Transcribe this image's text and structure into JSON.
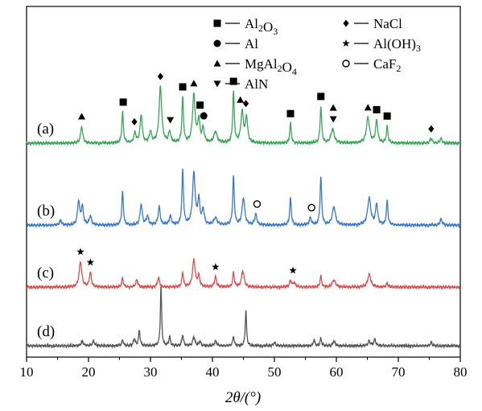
{
  "chart_data": {
    "type": "line",
    "xlabel": "2θ/(°)",
    "xlim": [
      10,
      80
    ],
    "x_ticks": [
      "10",
      "20",
      "30",
      "40",
      "50",
      "60",
      "70",
      "80"
    ],
    "legend": {
      "placement": "top-right",
      "entries": [
        {
          "marker": "square",
          "label": "Al",
          "sub": "2",
          "label2": "O",
          "sub2": "3",
          "label3": ""
        },
        {
          "marker": "circle",
          "label": "Al",
          "sub": "",
          "label2": "",
          "sub2": "",
          "label3": ""
        },
        {
          "marker": "triangle-up",
          "label": "MgAl",
          "sub": "2",
          "label2": "O",
          "sub2": "4",
          "label3": ""
        },
        {
          "marker": "triangle-down",
          "label": "AlN",
          "sub": "",
          "label2": "",
          "sub2": "",
          "label3": ""
        },
        {
          "marker": "diamond",
          "label": "NaCl",
          "sub": "",
          "label2": "",
          "sub2": "",
          "label3": ""
        },
        {
          "marker": "star",
          "label": "Al(OH)",
          "sub": "3",
          "label2": "",
          "sub2": "",
          "label3": ""
        },
        {
          "marker": "open-circle",
          "label": "CaF",
          "sub": "2",
          "label2": "",
          "sub2": "",
          "label3": ""
        }
      ]
    },
    "series": [
      {
        "name": "(a)",
        "color": "#3aa55a",
        "peaks": [
          {
            "x": 18.9,
            "h": 0.3,
            "w": 0.2
          },
          {
            "x": 25.5,
            "h": 0.55,
            "w": 0.15
          },
          {
            "x": 27.5,
            "h": 0.18,
            "w": 0.2
          },
          {
            "x": 28.5,
            "h": 0.5,
            "w": 0.2
          },
          {
            "x": 30.0,
            "h": 0.2,
            "w": 0.2
          },
          {
            "x": 31.6,
            "h": 1.0,
            "w": 0.25
          },
          {
            "x": 33.1,
            "h": 0.2,
            "w": 0.2
          },
          {
            "x": 35.2,
            "h": 0.8,
            "w": 0.15
          },
          {
            "x": 37.0,
            "h": 0.85,
            "w": 0.25
          },
          {
            "x": 37.8,
            "h": 0.4,
            "w": 0.2
          },
          {
            "x": 38.5,
            "h": 0.25,
            "w": 0.2
          },
          {
            "x": 40.5,
            "h": 0.2,
            "w": 0.3
          },
          {
            "x": 43.4,
            "h": 0.9,
            "w": 0.15
          },
          {
            "x": 44.8,
            "h": 0.55,
            "w": 0.25
          },
          {
            "x": 45.5,
            "h": 0.45,
            "w": 0.2
          },
          {
            "x": 52.6,
            "h": 0.35,
            "w": 0.15
          },
          {
            "x": 57.5,
            "h": 0.65,
            "w": 0.15
          },
          {
            "x": 59.4,
            "h": 0.25,
            "w": 0.3
          },
          {
            "x": 65.1,
            "h": 0.45,
            "w": 0.3
          },
          {
            "x": 66.5,
            "h": 0.4,
            "w": 0.2
          },
          {
            "x": 68.2,
            "h": 0.3,
            "w": 0.15
          },
          {
            "x": 75.3,
            "h": 0.08,
            "w": 0.2
          },
          {
            "x": 76.9,
            "h": 0.08,
            "w": 0.2
          }
        ]
      },
      {
        "name": "(b)",
        "color": "#3a78cc",
        "peaks": [
          {
            "x": 15.5,
            "h": 0.08,
            "w": 0.2
          },
          {
            "x": 18.4,
            "h": 0.4,
            "w": 0.2
          },
          {
            "x": 19.0,
            "h": 0.3,
            "w": 0.2
          },
          {
            "x": 20.3,
            "h": 0.15,
            "w": 0.2
          },
          {
            "x": 25.5,
            "h": 0.55,
            "w": 0.15
          },
          {
            "x": 28.5,
            "h": 0.35,
            "w": 0.2
          },
          {
            "x": 29.5,
            "h": 0.15,
            "w": 0.2
          },
          {
            "x": 31.4,
            "h": 0.3,
            "w": 0.2
          },
          {
            "x": 33.2,
            "h": 0.15,
            "w": 0.2
          },
          {
            "x": 35.2,
            "h": 0.9,
            "w": 0.15
          },
          {
            "x": 37.0,
            "h": 0.85,
            "w": 0.25
          },
          {
            "x": 37.8,
            "h": 0.4,
            "w": 0.2
          },
          {
            "x": 38.5,
            "h": 0.25,
            "w": 0.2
          },
          {
            "x": 40.5,
            "h": 0.12,
            "w": 0.3
          },
          {
            "x": 43.4,
            "h": 0.8,
            "w": 0.15
          },
          {
            "x": 45.0,
            "h": 0.45,
            "w": 0.25
          },
          {
            "x": 47.0,
            "h": 0.18,
            "w": 0.2
          },
          {
            "x": 52.6,
            "h": 0.45,
            "w": 0.15
          },
          {
            "x": 55.8,
            "h": 0.12,
            "w": 0.2
          },
          {
            "x": 57.5,
            "h": 0.8,
            "w": 0.15
          },
          {
            "x": 59.6,
            "h": 0.3,
            "w": 0.3
          },
          {
            "x": 65.3,
            "h": 0.45,
            "w": 0.3
          },
          {
            "x": 66.5,
            "h": 0.35,
            "w": 0.2
          },
          {
            "x": 68.2,
            "h": 0.4,
            "w": 0.15
          },
          {
            "x": 76.9,
            "h": 0.1,
            "w": 0.2
          }
        ]
      },
      {
        "name": "(c)",
        "color": "#d94f4f",
        "peaks": [
          {
            "x": 18.7,
            "h": 0.7,
            "w": 0.25
          },
          {
            "x": 20.3,
            "h": 0.4,
            "w": 0.2
          },
          {
            "x": 25.5,
            "h": 0.25,
            "w": 0.15
          },
          {
            "x": 27.8,
            "h": 0.2,
            "w": 0.2
          },
          {
            "x": 31.3,
            "h": 0.25,
            "w": 0.2
          },
          {
            "x": 35.2,
            "h": 0.4,
            "w": 0.15
          },
          {
            "x": 37.0,
            "h": 0.75,
            "w": 0.25
          },
          {
            "x": 37.8,
            "h": 0.3,
            "w": 0.2
          },
          {
            "x": 40.5,
            "h": 0.28,
            "w": 0.2
          },
          {
            "x": 43.4,
            "h": 0.4,
            "w": 0.15
          },
          {
            "x": 44.9,
            "h": 0.45,
            "w": 0.25
          },
          {
            "x": 52.6,
            "h": 0.18,
            "w": 0.2
          },
          {
            "x": 53.2,
            "h": 0.12,
            "w": 0.2
          },
          {
            "x": 57.5,
            "h": 0.3,
            "w": 0.15
          },
          {
            "x": 59.6,
            "h": 0.2,
            "w": 0.3
          },
          {
            "x": 65.3,
            "h": 0.35,
            "w": 0.3
          },
          {
            "x": 68.2,
            "h": 0.12,
            "w": 0.15
          }
        ]
      },
      {
        "name": "(d)",
        "color": "#555555",
        "peaks": [
          {
            "x": 19.0,
            "h": 0.08,
            "w": 0.2
          },
          {
            "x": 20.8,
            "h": 0.08,
            "w": 0.2
          },
          {
            "x": 25.5,
            "h": 0.1,
            "w": 0.15
          },
          {
            "x": 27.4,
            "h": 0.12,
            "w": 0.15
          },
          {
            "x": 28.2,
            "h": 0.25,
            "w": 0.15
          },
          {
            "x": 31.7,
            "h": 1.0,
            "w": 0.12
          },
          {
            "x": 33.1,
            "h": 0.15,
            "w": 0.15
          },
          {
            "x": 35.2,
            "h": 0.18,
            "w": 0.15
          },
          {
            "x": 37.0,
            "h": 0.15,
            "w": 0.2
          },
          {
            "x": 38.0,
            "h": 0.08,
            "w": 0.15
          },
          {
            "x": 40.5,
            "h": 0.08,
            "w": 0.2
          },
          {
            "x": 43.4,
            "h": 0.15,
            "w": 0.15
          },
          {
            "x": 45.4,
            "h": 0.6,
            "w": 0.12
          },
          {
            "x": 50.0,
            "h": 0.05,
            "w": 0.2
          },
          {
            "x": 56.4,
            "h": 0.1,
            "w": 0.15
          },
          {
            "x": 57.5,
            "h": 0.12,
            "w": 0.15
          },
          {
            "x": 59.6,
            "h": 0.08,
            "w": 0.2
          },
          {
            "x": 65.3,
            "h": 0.08,
            "w": 0.2
          },
          {
            "x": 66.2,
            "h": 0.1,
            "w": 0.2
          },
          {
            "x": 75.3,
            "h": 0.06,
            "w": 0.15
          }
        ]
      }
    ],
    "markers": [
      {
        "series": "(a)",
        "type": "triangle-up",
        "x": 18.9
      },
      {
        "series": "(a)",
        "type": "square",
        "x": 25.6
      },
      {
        "series": "(a)",
        "type": "diamond",
        "x": 27.4
      },
      {
        "series": "(a)",
        "type": "diamond",
        "x": 31.6
      },
      {
        "series": "(a)",
        "type": "triangle-down",
        "x": 33.2
      },
      {
        "series": "(a)",
        "type": "square",
        "x": 35.2
      },
      {
        "series": "(a)",
        "type": "triangle-up",
        "x": 37.0
      },
      {
        "series": "(a)",
        "type": "square",
        "x": 38.0
      },
      {
        "series": "(a)",
        "type": "circle",
        "x": 38.6
      },
      {
        "series": "(a)",
        "type": "square",
        "x": 43.4
      },
      {
        "series": "(a)",
        "type": "triangle-up",
        "x": 44.5
      },
      {
        "series": "(a)",
        "type": "diamond",
        "x": 45.4
      },
      {
        "series": "(a)",
        "type": "square",
        "x": 52.6
      },
      {
        "series": "(a)",
        "type": "square",
        "x": 57.5
      },
      {
        "series": "(a)",
        "type": "triangle-down",
        "x": 59.5
      },
      {
        "series": "(a)",
        "type": "triangle-up",
        "x": 59.5
      },
      {
        "series": "(a)",
        "type": "triangle-up",
        "x": 65.1
      },
      {
        "series": "(a)",
        "type": "square",
        "x": 66.5
      },
      {
        "series": "(a)",
        "type": "square",
        "x": 68.2
      },
      {
        "series": "(a)",
        "type": "diamond",
        "x": 75.3
      },
      {
        "series": "(b)",
        "type": "open-circle",
        "x": 47.2
      },
      {
        "series": "(b)",
        "type": "open-circle",
        "x": 56.0
      },
      {
        "series": "(c)",
        "type": "star",
        "x": 18.7
      },
      {
        "series": "(c)",
        "type": "star",
        "x": 20.3
      },
      {
        "series": "(c)",
        "type": "star",
        "x": 40.5
      },
      {
        "series": "(c)",
        "type": "star",
        "x": 53.0
      }
    ]
  }
}
